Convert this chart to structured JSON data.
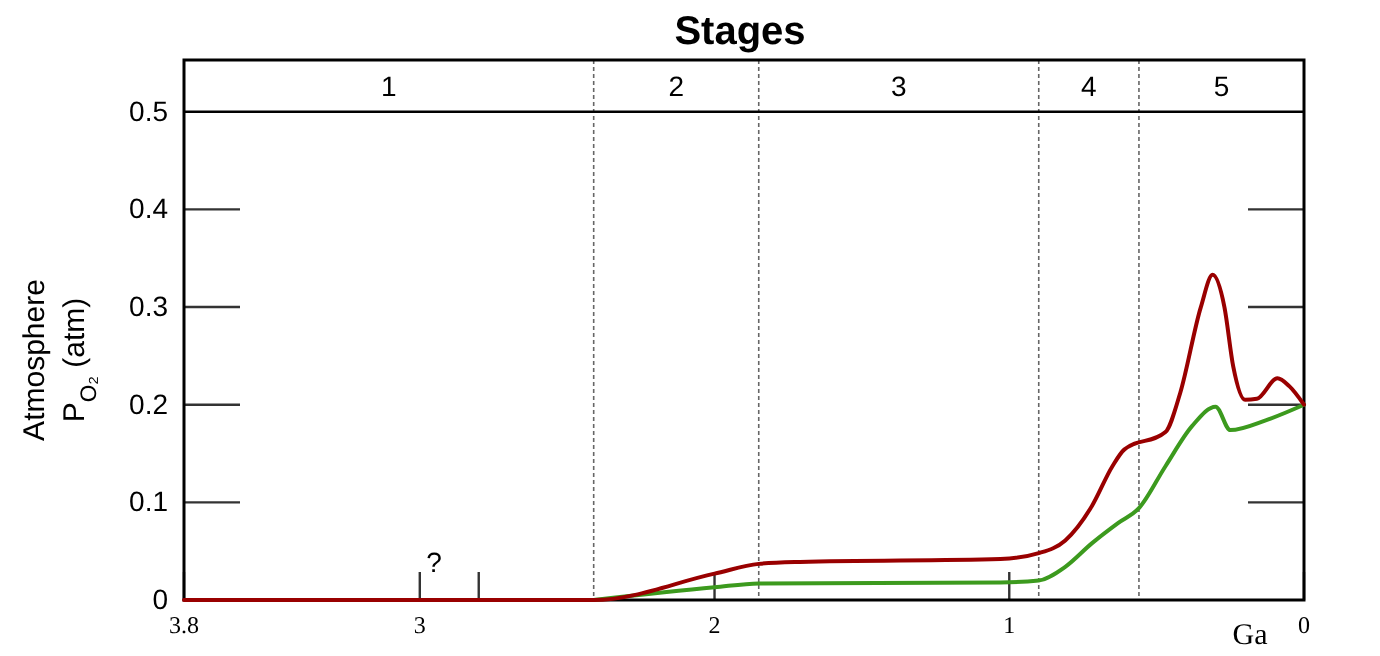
{
  "chart_data": {
    "type": "line",
    "title": "Stages",
    "xlabel": "Ga",
    "ylabel": "Atmosphere\nP$_{O₂}$ (atm)",
    "xlim": [
      3.8,
      0
    ],
    "ylim": [
      0,
      0.553
    ],
    "xticks": [
      3.8,
      3,
      {
        "value": 2.8,
        "label": null
      },
      2,
      1,
      0
    ],
    "yticks": [
      0,
      0.1,
      0.2,
      0.3,
      0.4,
      0.5
    ],
    "ref_lines": [
      {
        "axis": "x",
        "value": 2.41,
        "line_style": "dotted"
      },
      {
        "axis": "x",
        "value": 1.85,
        "line_style": "dotted"
      },
      {
        "axis": "x",
        "value": 0.9,
        "line_style": "dotted"
      },
      {
        "axis": "x",
        "value": 0.56,
        "line_style": "dotted"
      },
      {
        "axis": "y",
        "value": 0.5,
        "line_style": "solid"
      }
    ],
    "annotations": [
      "?",
      "1",
      "2",
      "3",
      "4",
      "5"
    ],
    "series": [
      {
        "color": "#990000",
        "x": [
          3.8,
          2.41,
          2.0,
          1.85,
          1.71,
          1.03,
          0.9,
          0.81,
          0.72,
          0.65,
          0.61,
          0.47,
          0.42,
          0.35,
          0.31,
          0.27,
          0.24,
          0.2,
          0.16,
          0.09,
          0.05,
          0
        ],
        "values": [
          0,
          0,
          0.027,
          0.037,
          0.039,
          0.042,
          0.048,
          0.061,
          0.096,
          0.137,
          0.154,
          0.172,
          0.212,
          0.3,
          0.333,
          0.3,
          0.239,
          0.205,
          0.206,
          0.227,
          0.219,
          0.2
        ]
      },
      {
        "color": "#3c9a1e",
        "x": [
          2.41,
          2.0,
          1.85,
          1.03,
          0.9,
          0.81,
          0.72,
          0.63,
          0.56,
          0.47,
          0.38,
          0.3,
          0.25,
          0.13,
          0
        ],
        "values": [
          0,
          0.013,
          0.017,
          0.018,
          0.02,
          0.034,
          0.058,
          0.079,
          0.094,
          0.137,
          0.178,
          0.198,
          0.174,
          0.184,
          0.2
        ]
      }
    ]
  }
}
